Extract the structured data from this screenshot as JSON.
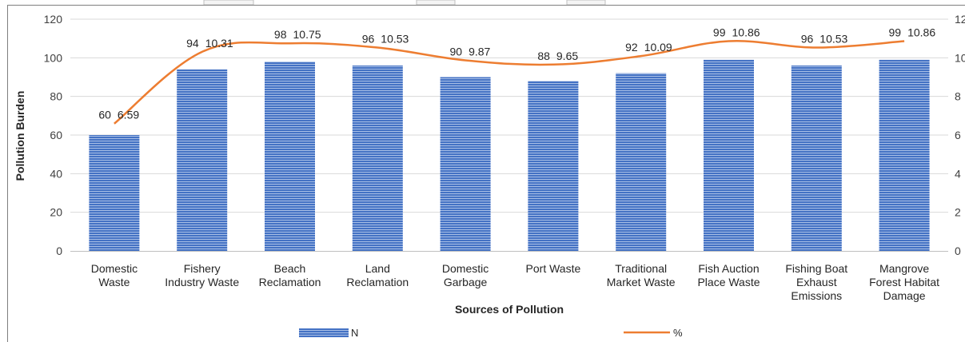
{
  "chart_data": {
    "type": "bar",
    "title": "",
    "xlabel": "Sources of Pollution",
    "ylabel": "Pollution Burden",
    "ylim": [
      0,
      120
    ],
    "y_ticks": [
      0,
      20,
      40,
      60,
      80,
      100,
      120
    ],
    "y2_ticks": [
      "0",
      "2",
      "4",
      "6",
      "8",
      "10",
      "12"
    ],
    "y2lim": [
      0,
      12
    ],
    "categories": [
      [
        "Domestic",
        "Waste"
      ],
      [
        "Fishery",
        "Industry Waste"
      ],
      [
        "Beach",
        "Reclamation"
      ],
      [
        "Land",
        "Reclamation"
      ],
      [
        "Domestic",
        "Garbage"
      ],
      [
        "Port Waste"
      ],
      [
        "Traditional",
        "Market Waste"
      ],
      [
        "Fish Auction",
        "Place Waste"
      ],
      [
        "Fishing Boat",
        "Exhaust",
        "Emissions"
      ],
      [
        "Mangrove",
        "Forest Habitat",
        "Damage"
      ]
    ],
    "series": [
      {
        "name": "N",
        "kind": "bar",
        "axis": "left",
        "color": "#4472C4",
        "values": [
          60,
          94,
          98,
          96,
          90,
          88,
          92,
          99,
          96,
          99
        ],
        "labels": [
          "60",
          "94",
          "98",
          "96",
          "90",
          "88",
          "92",
          "99",
          "96",
          "99"
        ]
      },
      {
        "name": "%",
        "kind": "line",
        "axis": "right",
        "color": "#ED7D31",
        "values": [
          6.59,
          10.31,
          10.75,
          10.53,
          9.87,
          9.65,
          10.09,
          10.86,
          10.53,
          10.86
        ],
        "labels": [
          "6.59",
          "10.31",
          "10.75",
          "10.53",
          "9.87",
          "9.65",
          "10.09",
          "10.86",
          "10.53",
          "10.86"
        ]
      }
    ],
    "grid": true,
    "legend_position": "bottom"
  }
}
